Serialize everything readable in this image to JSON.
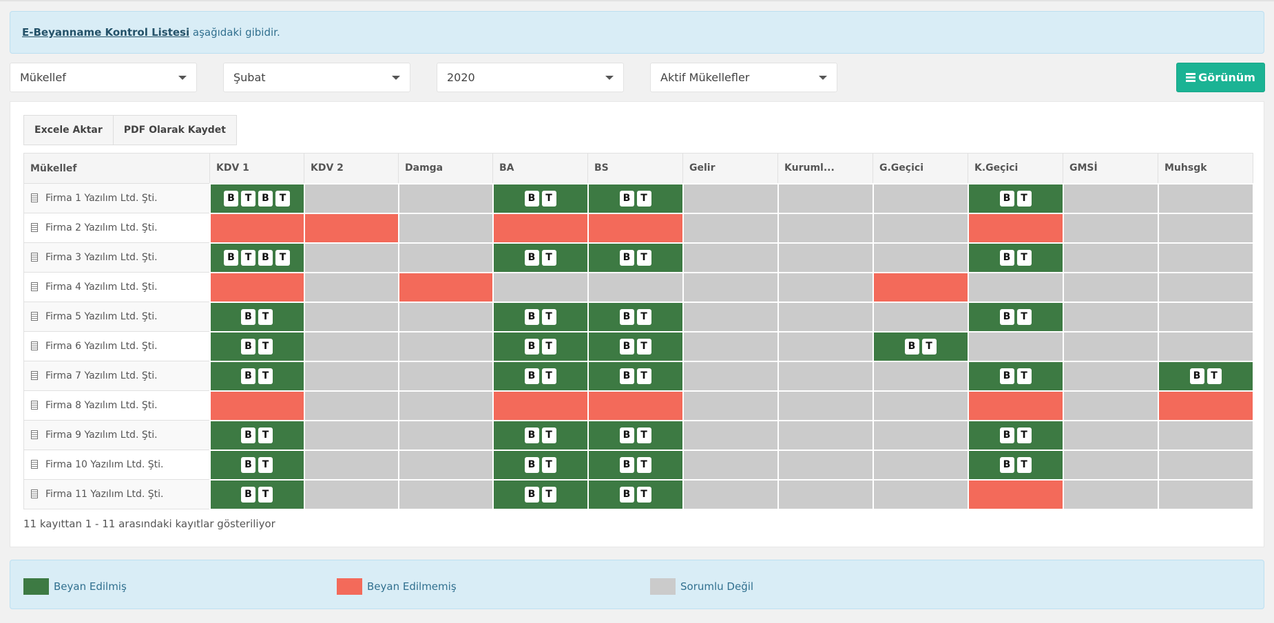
{
  "info": {
    "link": "E-Beyanname Kontrol Listesi",
    "text": " aşağıdaki gibidir."
  },
  "filters": [
    {
      "value": "Mükellef"
    },
    {
      "value": "Şubat"
    },
    {
      "value": "2020"
    },
    {
      "value": "Aktif Mükellefler"
    }
  ],
  "view_button": "Görünüm",
  "export": {
    "excel": "Excele Aktar",
    "pdf": "PDF Olarak Kaydet"
  },
  "columns": [
    "Mükellef",
    "KDV 1",
    "KDV 2",
    "Damga",
    "BA",
    "BS",
    "Gelir",
    "Kuruml...",
    "G.Geçici",
    "K.Geçici",
    "GMSİ",
    "Muhsgk"
  ],
  "status_legend": {
    "g": "Beyan Edilmiş",
    "r": "Beyan Edilmemiş",
    "n": "Sorumlu Değil"
  },
  "colors": {
    "g": "#3d7a43",
    "r": "#f36a5a",
    "n": "#cbcbcb",
    "accent": "#1bb394"
  },
  "rows": [
    {
      "name": "Firma 1 Yazılım Ltd. Şti.",
      "cells": [
        {
          "s": "g",
          "b": [
            "B",
            "T",
            "B",
            "T"
          ]
        },
        {
          "s": "n"
        },
        {
          "s": "n"
        },
        {
          "s": "g",
          "b": [
            "B",
            "T"
          ]
        },
        {
          "s": "g",
          "b": [
            "B",
            "T"
          ]
        },
        {
          "s": "n"
        },
        {
          "s": "n"
        },
        {
          "s": "n"
        },
        {
          "s": "g",
          "b": [
            "B",
            "T"
          ]
        },
        {
          "s": "n"
        },
        {
          "s": "n"
        }
      ]
    },
    {
      "name": "Firma 2 Yazılım Ltd. Şti.",
      "cells": [
        {
          "s": "r"
        },
        {
          "s": "r"
        },
        {
          "s": "n"
        },
        {
          "s": "r"
        },
        {
          "s": "r"
        },
        {
          "s": "n"
        },
        {
          "s": "n"
        },
        {
          "s": "n"
        },
        {
          "s": "r"
        },
        {
          "s": "n"
        },
        {
          "s": "n"
        }
      ]
    },
    {
      "name": "Firma 3 Yazılım Ltd. Şti.",
      "cells": [
        {
          "s": "g",
          "b": [
            "B",
            "T",
            "B",
            "T"
          ]
        },
        {
          "s": "n"
        },
        {
          "s": "n"
        },
        {
          "s": "g",
          "b": [
            "B",
            "T"
          ]
        },
        {
          "s": "g",
          "b": [
            "B",
            "T"
          ]
        },
        {
          "s": "n"
        },
        {
          "s": "n"
        },
        {
          "s": "n"
        },
        {
          "s": "g",
          "b": [
            "B",
            "T"
          ]
        },
        {
          "s": "n"
        },
        {
          "s": "n"
        }
      ]
    },
    {
      "name": "Firma 4 Yazılım Ltd. Şti.",
      "cells": [
        {
          "s": "r"
        },
        {
          "s": "n"
        },
        {
          "s": "r"
        },
        {
          "s": "n"
        },
        {
          "s": "n"
        },
        {
          "s": "n"
        },
        {
          "s": "n"
        },
        {
          "s": "r"
        },
        {
          "s": "n"
        },
        {
          "s": "n"
        },
        {
          "s": "n"
        }
      ]
    },
    {
      "name": "Firma 5 Yazılım Ltd. Şti.",
      "cells": [
        {
          "s": "g",
          "b": [
            "B",
            "T"
          ]
        },
        {
          "s": "n"
        },
        {
          "s": "n"
        },
        {
          "s": "g",
          "b": [
            "B",
            "T"
          ]
        },
        {
          "s": "g",
          "b": [
            "B",
            "T"
          ]
        },
        {
          "s": "n"
        },
        {
          "s": "n"
        },
        {
          "s": "n"
        },
        {
          "s": "g",
          "b": [
            "B",
            "T"
          ]
        },
        {
          "s": "n"
        },
        {
          "s": "n"
        }
      ]
    },
    {
      "name": "Firma 6 Yazılım Ltd. Şti.",
      "cells": [
        {
          "s": "g",
          "b": [
            "B",
            "T"
          ]
        },
        {
          "s": "n"
        },
        {
          "s": "n"
        },
        {
          "s": "g",
          "b": [
            "B",
            "T"
          ]
        },
        {
          "s": "g",
          "b": [
            "B",
            "T"
          ]
        },
        {
          "s": "n"
        },
        {
          "s": "n"
        },
        {
          "s": "g",
          "b": [
            "B",
            "T"
          ]
        },
        {
          "s": "n"
        },
        {
          "s": "n"
        },
        {
          "s": "n"
        }
      ]
    },
    {
      "name": "Firma 7 Yazılım Ltd. Şti.",
      "cells": [
        {
          "s": "g",
          "b": [
            "B",
            "T"
          ]
        },
        {
          "s": "n"
        },
        {
          "s": "n"
        },
        {
          "s": "g",
          "b": [
            "B",
            "T"
          ]
        },
        {
          "s": "g",
          "b": [
            "B",
            "T"
          ]
        },
        {
          "s": "n"
        },
        {
          "s": "n"
        },
        {
          "s": "n"
        },
        {
          "s": "g",
          "b": [
            "B",
            "T"
          ]
        },
        {
          "s": "n"
        },
        {
          "s": "g",
          "b": [
            "B",
            "T"
          ]
        }
      ]
    },
    {
      "name": "Firma 8 Yazılım Ltd. Şti.",
      "cells": [
        {
          "s": "r"
        },
        {
          "s": "n"
        },
        {
          "s": "n"
        },
        {
          "s": "r"
        },
        {
          "s": "r"
        },
        {
          "s": "n"
        },
        {
          "s": "n"
        },
        {
          "s": "n"
        },
        {
          "s": "r"
        },
        {
          "s": "n"
        },
        {
          "s": "r"
        }
      ]
    },
    {
      "name": "Firma 9 Yazılım Ltd. Şti.",
      "cells": [
        {
          "s": "g",
          "b": [
            "B",
            "T"
          ]
        },
        {
          "s": "n"
        },
        {
          "s": "n"
        },
        {
          "s": "g",
          "b": [
            "B",
            "T"
          ]
        },
        {
          "s": "g",
          "b": [
            "B",
            "T"
          ]
        },
        {
          "s": "n"
        },
        {
          "s": "n"
        },
        {
          "s": "n"
        },
        {
          "s": "g",
          "b": [
            "B",
            "T"
          ]
        },
        {
          "s": "n"
        },
        {
          "s": "n"
        }
      ]
    },
    {
      "name": "Firma 10 Yazılım Ltd. Şti.",
      "cells": [
        {
          "s": "g",
          "b": [
            "B",
            "T"
          ]
        },
        {
          "s": "n"
        },
        {
          "s": "n"
        },
        {
          "s": "g",
          "b": [
            "B",
            "T"
          ]
        },
        {
          "s": "g",
          "b": [
            "B",
            "T"
          ]
        },
        {
          "s": "n"
        },
        {
          "s": "n"
        },
        {
          "s": "n"
        },
        {
          "s": "g",
          "b": [
            "B",
            "T"
          ]
        },
        {
          "s": "n"
        },
        {
          "s": "n"
        }
      ]
    },
    {
      "name": "Firma 11 Yazılım Ltd. Şti.",
      "cells": [
        {
          "s": "g",
          "b": [
            "B",
            "T"
          ]
        },
        {
          "s": "n"
        },
        {
          "s": "n"
        },
        {
          "s": "g",
          "b": [
            "B",
            "T"
          ]
        },
        {
          "s": "g",
          "b": [
            "B",
            "T"
          ]
        },
        {
          "s": "n"
        },
        {
          "s": "n"
        },
        {
          "s": "n"
        },
        {
          "s": "r"
        },
        {
          "s": "n"
        },
        {
          "s": "n"
        }
      ]
    }
  ],
  "footer_info": "11 kayıttan 1 - 11 arasındaki kayıtlar gösteriliyor"
}
